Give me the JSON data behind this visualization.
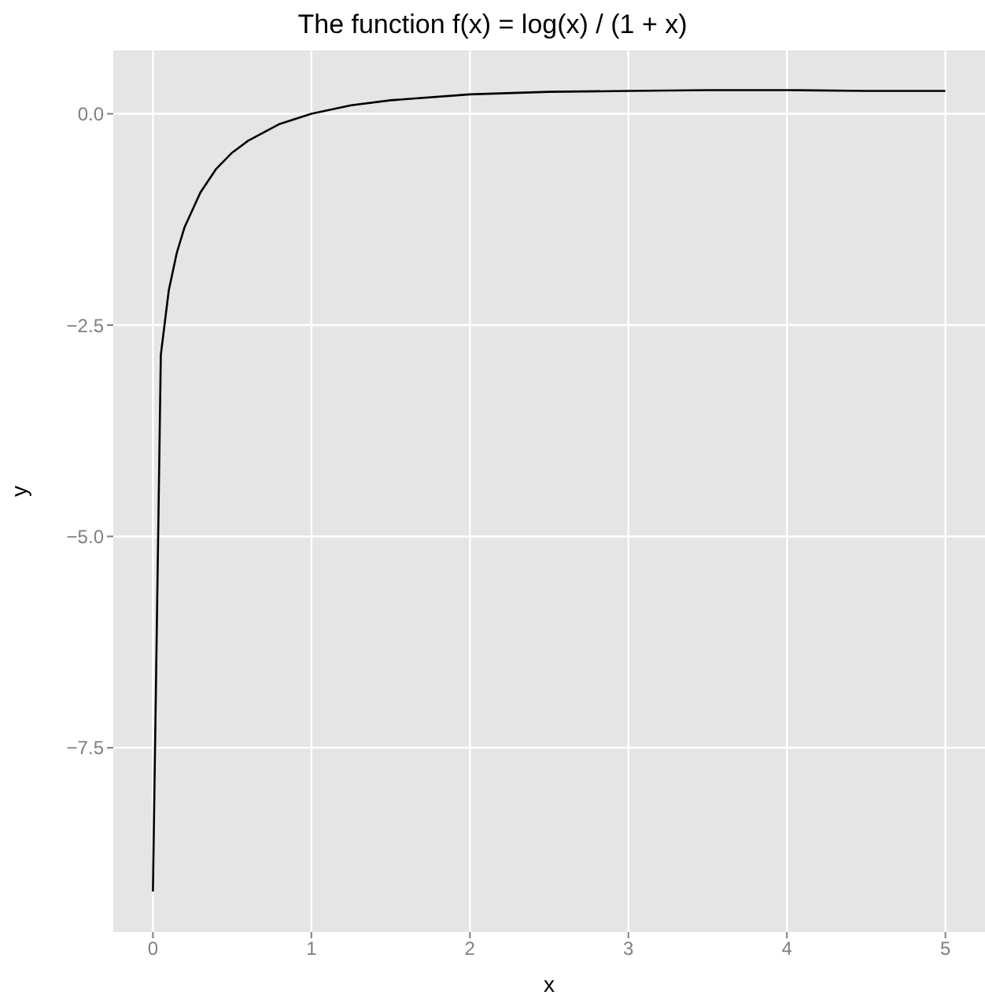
{
  "chart_data": {
    "type": "line",
    "title": "The function f(x) = log(x) / (1 + x)",
    "xlabel": "x",
    "ylabel": "y",
    "x": [
      0.0001,
      0.05,
      0.1,
      0.15,
      0.2,
      0.3,
      0.4,
      0.5,
      0.6,
      0.8,
      1,
      1.25,
      1.5,
      2,
      2.5,
      3,
      3.5,
      4,
      4.5,
      5
    ],
    "series": [
      {
        "color": "#000000",
        "values": [
          -9.2,
          -2.85,
          -2.09,
          -1.65,
          -1.34,
          -0.93,
          -0.65,
          -0.46,
          -0.32,
          -0.12,
          0,
          0.1,
          0.16,
          0.23,
          0.26,
          0.27,
          0.28,
          0.28,
          0.27,
          0.27
        ]
      }
    ],
    "xlim": [
      -0.25,
      5.25
    ],
    "ylim": [
      -9.68,
      0.75
    ],
    "xticks": [
      0,
      1,
      2,
      3,
      4,
      5
    ],
    "yticks": [
      {
        "value": -7.5,
        "label": "−7.5"
      },
      {
        "value": -5,
        "label": "−5.0"
      },
      {
        "value": -2.5,
        "label": "−2.5"
      },
      {
        "value": 0,
        "label": "0.0"
      }
    ],
    "grid": true,
    "legend": false,
    "marker": "none",
    "line_style": "solid"
  }
}
